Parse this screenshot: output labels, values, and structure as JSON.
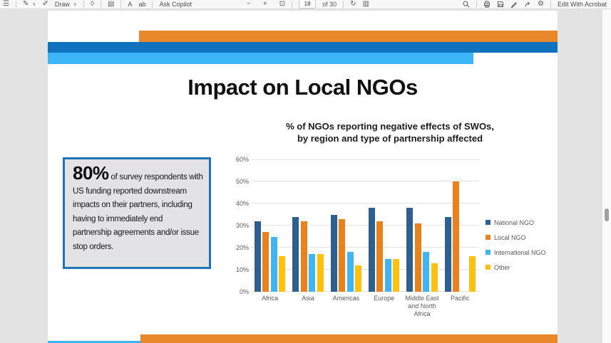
{
  "toolbar": {
    "draw_label": "Draw",
    "ask_copilot_label": "Ask Copilot",
    "page_current": "18",
    "page_total_label": "of 30",
    "read_aloud_label": "A",
    "text_select_label": "ab",
    "edit_acrobat_label": "Edit With Acrobat",
    "icons": {
      "contents": "☰",
      "pen": "✎",
      "chevron": "∨",
      "highlighter": "✐",
      "eraser": "◊",
      "pages": "▤",
      "zoom_out": "−",
      "zoom_in": "+",
      "fit_page": "⊡",
      "rotate": "↻",
      "two_page": "▥",
      "settings": "⚙"
    }
  },
  "slide": {
    "title": "Impact on Local NGOs",
    "callout_stat": "80%",
    "callout_text": "of survey respondents with US funding reported downstream impacts on their partners, including having to immediately end partnership agreements and/or issue stop orders."
  },
  "chart_data": {
    "type": "bar",
    "title_line1": "% of NGOs reporting negative effects of SWOs,",
    "title_line2": "by region and type of partnership affected",
    "categories": [
      "Africa",
      "Asia",
      "Americas",
      "Europe",
      "Middle East and North Africa",
      "Pacific"
    ],
    "series": [
      {
        "name": "National NGO",
        "color": "#2D6091",
        "values": [
          32,
          34,
          35,
          38,
          38,
          34
        ]
      },
      {
        "name": "Local NGO",
        "color": "#E8821F",
        "values": [
          27,
          32,
          33,
          32,
          31,
          50
        ]
      },
      {
        "name": "International NGO",
        "color": "#41B4F1",
        "values": [
          25,
          17,
          18,
          15,
          18,
          0
        ]
      },
      {
        "name": "Other",
        "color": "#FFC010",
        "values": [
          16,
          17,
          12,
          15,
          13,
          16
        ]
      }
    ],
    "ylim": [
      0,
      60
    ],
    "y_tick_step": 10,
    "y_tick_labels": [
      "0%",
      "10%",
      "20%",
      "30%",
      "40%",
      "50%",
      "60%"
    ],
    "grid": true,
    "legend_position": "right"
  },
  "colors": {
    "banner_orange": "#E8882B",
    "banner_blue": "#0E72BE",
    "banner_lightblue": "#3AB5F5",
    "callout_border": "#2373B9",
    "callout_bg": "#E3E3E6"
  }
}
